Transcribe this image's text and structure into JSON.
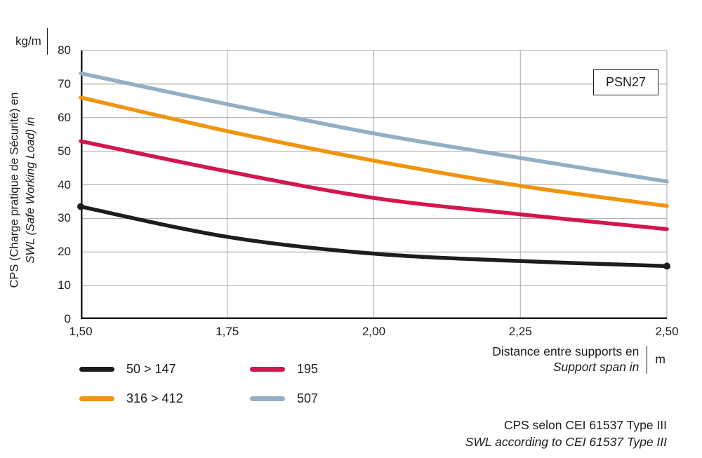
{
  "chart_data": {
    "type": "line",
    "x": [
      1.5,
      1.75,
      2.0,
      2.25,
      2.5
    ],
    "x_tick_labels": [
      "1,50",
      "1,75",
      "2,00",
      "2,25",
      "2,50"
    ],
    "y_ticks": [
      0,
      10,
      20,
      30,
      40,
      50,
      60,
      70,
      80
    ],
    "y_tick_labels": [
      "0",
      "10",
      "20",
      "30",
      "40",
      "50",
      "60",
      "70",
      "80"
    ],
    "xlim": [
      1.5,
      2.5
    ],
    "ylim": [
      0,
      80
    ],
    "grid": true,
    "legend_position": "bottom-left",
    "series": [
      {
        "name": "50 > 147",
        "color": "#1d1d1b",
        "values": [
          33.5,
          24.5,
          19.5,
          17.3,
          15.8
        ],
        "end_dots": true
      },
      {
        "name": "316 > 412",
        "color": "#f0940c",
        "values": [
          66.0,
          56.0,
          47.2,
          39.7,
          33.7
        ]
      },
      {
        "name": "195",
        "color": "#d4164f",
        "values": [
          53.0,
          44.0,
          36.1,
          31.2,
          26.8
        ]
      },
      {
        "name": "507",
        "color": "#92afc4",
        "values": [
          73.2,
          64.0,
          55.3,
          48.0,
          41.0
        ]
      }
    ]
  },
  "labels": {
    "badge": "PSN27",
    "y_title_fr": "CPS (Charge pratique de Sécurité) en",
    "y_title_en": "SWL (Safe Working Load) in",
    "y_unit": "kg/m",
    "x_title_fr": "Distance entre supports en",
    "x_title_en": "Support span in",
    "x_unit": "m",
    "footnote_fr": "CPS selon CEI 61537 Type III",
    "footnote_en": "SWL according to CEI 61537 Type III"
  },
  "colors": {
    "grid": "#a6a6a5",
    "axis": "#1d1d1b",
    "background": "#ffffff"
  }
}
